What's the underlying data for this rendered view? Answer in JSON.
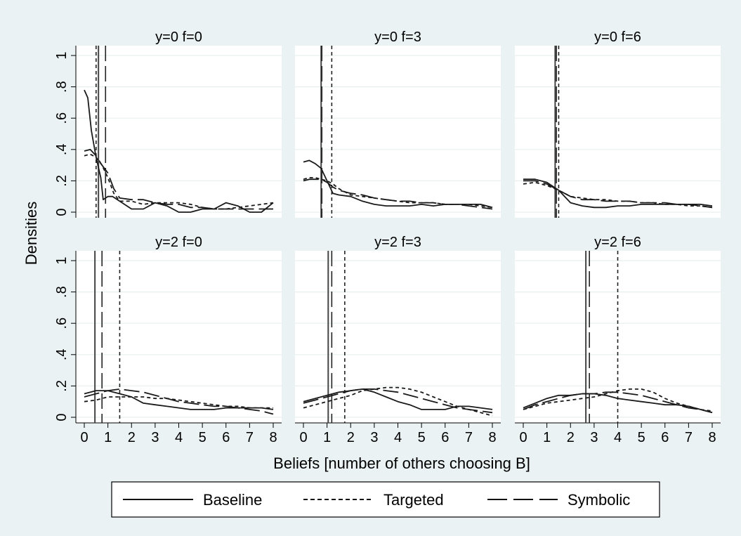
{
  "chart_data": {
    "type": "line",
    "xlabel": "Beliefs [number of others choosing B]",
    "ylabel": "Densities",
    "xlim": [
      0,
      8
    ],
    "ylim": [
      0,
      1
    ],
    "xticks": [
      "0",
      "1",
      "2",
      "3",
      "4",
      "5",
      "6",
      "7",
      "8"
    ],
    "yticks": [
      "0",
      ".2",
      ".4",
      ".6",
      ".8",
      "1"
    ],
    "ytick_values": [
      0,
      0.2,
      0.4,
      0.6,
      0.8,
      1
    ],
    "grid": true,
    "legend_position": "bottom",
    "legend": [
      {
        "name": "Baseline",
        "style": "solid"
      },
      {
        "name": "Targeted",
        "style": "short-dash"
      },
      {
        "name": "Symbolic",
        "style": "long-dash"
      }
    ],
    "panels": [
      {
        "title": "y=0 f=0",
        "means": {
          "Baseline": 0.6,
          "Targeted": 0.5,
          "Symbolic": 0.9
        },
        "series": [
          {
            "name": "Baseline",
            "x": [
              0,
              0.15,
              0.3,
              0.5,
              0.7,
              0.8,
              0.9,
              1.0,
              1.2,
              1.5,
              2.0,
              2.5,
              3.0,
              3.5,
              4.0,
              4.5,
              5.0,
              5.5,
              6.0,
              6.5,
              7.0,
              7.5,
              8.0
            ],
            "y": [
              0.78,
              0.73,
              0.52,
              0.35,
              0.22,
              0.08,
              0.09,
              0.1,
              0.1,
              0.07,
              0.02,
              0.02,
              0.06,
              0.04,
              0.0,
              0.0,
              0.02,
              0.02,
              0.06,
              0.04,
              0.0,
              0.0,
              0.06
            ]
          },
          {
            "name": "Targeted",
            "x": [
              0,
              0.25,
              0.5,
              0.75,
              1.0,
              1.25,
              1.5,
              2.0,
              2.5,
              3.0,
              3.5,
              4.0,
              4.5,
              5.0,
              5.5,
              6.0,
              6.5,
              7.0,
              7.5,
              8.0
            ],
            "y": [
              0.36,
              0.37,
              0.35,
              0.3,
              0.22,
              0.12,
              0.07,
              0.07,
              0.05,
              0.06,
              0.06,
              0.06,
              0.05,
              0.03,
              0.02,
              0.02,
              0.03,
              0.04,
              0.05,
              0.06
            ]
          },
          {
            "name": "Symbolic",
            "x": [
              0,
              0.25,
              0.5,
              0.75,
              1.0,
              1.25,
              1.5,
              2.0,
              2.5,
              3.0,
              3.5,
              4.0,
              4.5,
              5.0,
              5.5,
              6.0,
              6.5,
              7.0,
              7.5,
              8.0
            ],
            "y": [
              0.39,
              0.4,
              0.36,
              0.3,
              0.25,
              0.15,
              0.09,
              0.08,
              0.08,
              0.06,
              0.05,
              0.05,
              0.03,
              0.03,
              0.02,
              0.02,
              0.02,
              0.02,
              0.02,
              0.02
            ]
          }
        ]
      },
      {
        "title": "y=0 f=3",
        "means": {
          "Baseline": 0.75,
          "Targeted": 1.2,
          "Symbolic": 0.78
        },
        "series": [
          {
            "name": "Baseline",
            "x": [
              0,
              0.25,
              0.5,
              0.75,
              1.0,
              1.25,
              1.5,
              2.0,
              2.5,
              3.0,
              3.5,
              4.0,
              4.5,
              5.0,
              5.5,
              6.0,
              6.5,
              7.0,
              7.5,
              8.0
            ],
            "y": [
              0.32,
              0.33,
              0.31,
              0.28,
              0.2,
              0.12,
              0.11,
              0.1,
              0.07,
              0.05,
              0.04,
              0.04,
              0.04,
              0.05,
              0.04,
              0.05,
              0.05,
              0.05,
              0.05,
              0.03
            ]
          },
          {
            "name": "Targeted",
            "x": [
              0,
              0.25,
              0.5,
              0.75,
              1.0,
              1.25,
              1.5,
              2.0,
              2.5,
              3.0,
              3.5,
              4.0,
              4.5,
              5.0,
              5.5,
              6.0,
              6.5,
              7.0,
              7.5,
              8.0
            ],
            "y": [
              0.21,
              0.22,
              0.22,
              0.21,
              0.2,
              0.18,
              0.15,
              0.11,
              0.1,
              0.09,
              0.08,
              0.07,
              0.06,
              0.06,
              0.06,
              0.05,
              0.05,
              0.05,
              0.04,
              0.03
            ]
          },
          {
            "name": "Symbolic",
            "x": [
              0,
              0.25,
              0.5,
              0.75,
              1.0,
              1.25,
              1.5,
              2.0,
              2.5,
              3.0,
              3.5,
              4.0,
              4.5,
              5.0,
              5.5,
              6.0,
              6.5,
              7.0,
              7.5,
              8.0
            ],
            "y": [
              0.2,
              0.21,
              0.21,
              0.21,
              0.19,
              0.16,
              0.14,
              0.12,
              0.11,
              0.09,
              0.08,
              0.07,
              0.07,
              0.06,
              0.06,
              0.05,
              0.05,
              0.04,
              0.03,
              0.02
            ]
          }
        ]
      },
      {
        "title": "y=0 f=6",
        "means": {
          "Baseline": 1.35,
          "Targeted": 1.5,
          "Symbolic": 1.4
        },
        "series": [
          {
            "name": "Baseline",
            "x": [
              0,
              0.5,
              1.0,
              1.5,
              2.0,
              2.5,
              3.0,
              3.5,
              4.0,
              4.5,
              5.0,
              5.5,
              6.0,
              6.5,
              7.0,
              7.5,
              8.0
            ],
            "y": [
              0.21,
              0.21,
              0.19,
              0.14,
              0.06,
              0.04,
              0.03,
              0.03,
              0.04,
              0.04,
              0.05,
              0.05,
              0.05,
              0.05,
              0.05,
              0.05,
              0.04
            ]
          },
          {
            "name": "Targeted",
            "x": [
              0,
              0.5,
              1.0,
              1.5,
              2.0,
              2.5,
              3.0,
              3.5,
              4.0,
              4.5,
              5.0,
              5.5,
              6.0,
              6.5,
              7.0,
              7.5,
              8.0
            ],
            "y": [
              0.18,
              0.19,
              0.17,
              0.14,
              0.1,
              0.09,
              0.08,
              0.08,
              0.07,
              0.07,
              0.06,
              0.06,
              0.05,
              0.05,
              0.04,
              0.04,
              0.03
            ]
          },
          {
            "name": "Symbolic",
            "x": [
              0,
              0.5,
              1.0,
              1.5,
              2.0,
              2.5,
              3.0,
              3.5,
              4.0,
              4.5,
              5.0,
              5.5,
              6.0,
              6.5,
              7.0,
              7.5,
              8.0
            ],
            "y": [
              0.2,
              0.2,
              0.18,
              0.14,
              0.1,
              0.08,
              0.08,
              0.07,
              0.07,
              0.07,
              0.06,
              0.06,
              0.06,
              0.05,
              0.05,
              0.04,
              0.03
            ]
          }
        ]
      },
      {
        "title": "y=2 f=0",
        "means": {
          "Baseline": 0.45,
          "Targeted": 1.5,
          "Symbolic": 0.75
        },
        "series": [
          {
            "name": "Baseline",
            "x": [
              0,
              0.5,
              1.0,
              1.5,
              2.0,
              2.5,
              3.0,
              3.5,
              4.0,
              4.5,
              5.0,
              5.5,
              6.0,
              6.5,
              7.0,
              7.5,
              8.0
            ],
            "y": [
              0.15,
              0.17,
              0.17,
              0.15,
              0.13,
              0.09,
              0.08,
              0.07,
              0.06,
              0.05,
              0.05,
              0.05,
              0.06,
              0.06,
              0.06,
              0.06,
              0.05
            ]
          },
          {
            "name": "Targeted",
            "x": [
              0,
              0.5,
              1.0,
              1.5,
              2.0,
              2.5,
              3.0,
              3.5,
              4.0,
              4.5,
              5.0,
              5.5,
              6.0,
              6.5,
              7.0,
              7.5,
              8.0
            ],
            "y": [
              0.1,
              0.11,
              0.13,
              0.13,
              0.13,
              0.13,
              0.12,
              0.12,
              0.11,
              0.1,
              0.09,
              0.08,
              0.07,
              0.07,
              0.06,
              0.06,
              0.06
            ]
          },
          {
            "name": "Symbolic",
            "x": [
              0,
              0.5,
              1.0,
              1.5,
              2.0,
              2.5,
              3.0,
              3.5,
              4.0,
              4.5,
              5.0,
              5.5,
              6.0,
              6.5,
              7.0,
              7.5,
              8.0
            ],
            "y": [
              0.13,
              0.15,
              0.17,
              0.18,
              0.17,
              0.16,
              0.14,
              0.12,
              0.1,
              0.09,
              0.08,
              0.07,
              0.07,
              0.06,
              0.05,
              0.04,
              0.02
            ]
          }
        ]
      },
      {
        "title": "y=2 f=3",
        "means": {
          "Baseline": 1.05,
          "Targeted": 1.75,
          "Symbolic": 1.2
        },
        "series": [
          {
            "name": "Baseline",
            "x": [
              0,
              0.5,
              1.0,
              1.5,
              2.0,
              2.5,
              3.0,
              3.5,
              4.0,
              4.5,
              5.0,
              5.5,
              6.0,
              6.5,
              7.0,
              7.5,
              8.0
            ],
            "y": [
              0.1,
              0.12,
              0.14,
              0.16,
              0.17,
              0.18,
              0.16,
              0.13,
              0.1,
              0.08,
              0.05,
              0.05,
              0.05,
              0.07,
              0.07,
              0.06,
              0.05
            ]
          },
          {
            "name": "Targeted",
            "x": [
              0,
              0.5,
              1.0,
              1.5,
              2.0,
              2.5,
              3.0,
              3.5,
              4.0,
              4.5,
              5.0,
              5.5,
              6.0,
              6.5,
              7.0,
              7.5,
              8.0
            ],
            "y": [
              0.06,
              0.08,
              0.1,
              0.12,
              0.14,
              0.17,
              0.18,
              0.19,
              0.19,
              0.18,
              0.16,
              0.13,
              0.1,
              0.07,
              0.05,
              0.03,
              0.01
            ]
          },
          {
            "name": "Symbolic",
            "x": [
              0,
              0.5,
              1.0,
              1.5,
              2.0,
              2.5,
              3.0,
              3.5,
              4.0,
              4.5,
              5.0,
              5.5,
              6.0,
              6.5,
              7.0,
              7.5,
              8.0
            ],
            "y": [
              0.09,
              0.11,
              0.13,
              0.15,
              0.17,
              0.18,
              0.18,
              0.17,
              0.16,
              0.14,
              0.12,
              0.1,
              0.08,
              0.06,
              0.05,
              0.04,
              0.03
            ]
          }
        ]
      },
      {
        "title": "y=2 f=6",
        "means": {
          "Baseline": 2.65,
          "Targeted": 4.0,
          "Symbolic": 2.8
        },
        "series": [
          {
            "name": "Baseline",
            "x": [
              0,
              0.5,
              1.0,
              1.5,
              2.0,
              2.5,
              3.0,
              3.5,
              4.0,
              4.5,
              5.0,
              5.5,
              6.0,
              6.5,
              7.0,
              7.5,
              8.0
            ],
            "y": [
              0.06,
              0.09,
              0.12,
              0.14,
              0.14,
              0.15,
              0.15,
              0.14,
              0.12,
              0.11,
              0.1,
              0.09,
              0.08,
              0.08,
              0.07,
              0.05,
              0.03
            ]
          },
          {
            "name": "Targeted",
            "x": [
              0,
              0.5,
              1.0,
              1.5,
              2.0,
              2.5,
              3.0,
              3.5,
              4.0,
              4.5,
              5.0,
              5.5,
              6.0,
              6.5,
              7.0,
              7.5,
              8.0
            ],
            "y": [
              0.05,
              0.07,
              0.09,
              0.1,
              0.11,
              0.12,
              0.13,
              0.15,
              0.17,
              0.18,
              0.18,
              0.16,
              0.12,
              0.09,
              0.07,
              0.05,
              0.04
            ]
          },
          {
            "name": "Symbolic",
            "x": [
              0,
              0.5,
              1.0,
              1.5,
              2.0,
              2.5,
              3.0,
              3.5,
              4.0,
              4.5,
              5.0,
              5.5,
              6.0,
              6.5,
              7.0,
              7.5,
              8.0
            ],
            "y": [
              0.05,
              0.08,
              0.1,
              0.12,
              0.14,
              0.15,
              0.15,
              0.16,
              0.16,
              0.15,
              0.14,
              0.12,
              0.1,
              0.08,
              0.06,
              0.05,
              0.03
            ]
          }
        ]
      }
    ]
  }
}
